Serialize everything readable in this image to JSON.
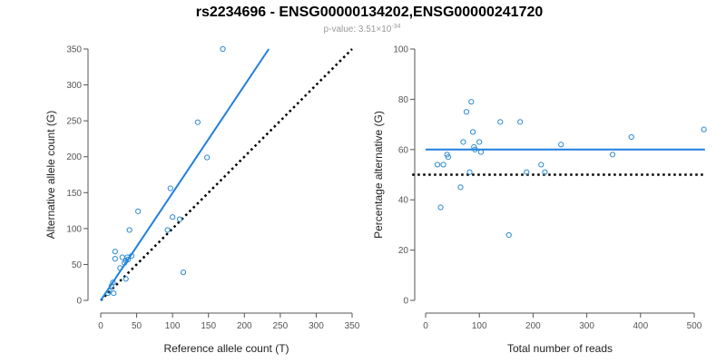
{
  "figure": {
    "title": "rs2234696 - ENSG00000134202,ENSG00000241720",
    "subtitle": {
      "prefix": "p-value: 3.51×10",
      "exponent": "-34"
    }
  },
  "colors": {
    "points": "#2a8ad4",
    "fit_line": "#1f7fe0",
    "reference_line": "#000000",
    "axis": "#555555"
  },
  "chart_data": [
    {
      "type": "scatter",
      "xlabel": "Reference allele count (T)",
      "ylabel": "Alternative allele count (G)",
      "xlim": [
        0,
        350
      ],
      "ylim": [
        0,
        350
      ],
      "xticks": [
        0,
        50,
        100,
        150,
        200,
        250,
        300,
        350
      ],
      "yticks": [
        0,
        50,
        100,
        150,
        200,
        250,
        300,
        350
      ],
      "grid": false,
      "points": [
        {
          "x": 10,
          "y": 10
        },
        {
          "x": 12,
          "y": 13
        },
        {
          "x": 15,
          "y": 20
        },
        {
          "x": 17,
          "y": 25
        },
        {
          "x": 18,
          "y": 10
        },
        {
          "x": 20,
          "y": 58
        },
        {
          "x": 20,
          "y": 68
        },
        {
          "x": 27,
          "y": 45
        },
        {
          "x": 30,
          "y": 60
        },
        {
          "x": 33,
          "y": 52
        },
        {
          "x": 35,
          "y": 55
        },
        {
          "x": 35,
          "y": 30
        },
        {
          "x": 37,
          "y": 60
        },
        {
          "x": 38,
          "y": 57
        },
        {
          "x": 40,
          "y": 98
        },
        {
          "x": 43,
          "y": 62
        },
        {
          "x": 52,
          "y": 124
        },
        {
          "x": 93,
          "y": 98
        },
        {
          "x": 97,
          "y": 156
        },
        {
          "x": 100,
          "y": 116
        },
        {
          "x": 110,
          "y": 113
        },
        {
          "x": 115,
          "y": 39
        },
        {
          "x": 135,
          "y": 248
        },
        {
          "x": 148,
          "y": 199
        },
        {
          "x": 170,
          "y": 350
        }
      ],
      "fit_line": {
        "x": [
          0,
          234
        ],
        "y": [
          0,
          350
        ]
      },
      "reference_line": {
        "x": [
          0,
          350
        ],
        "y": [
          0,
          350
        ]
      }
    },
    {
      "type": "scatter",
      "xlabel": "Total number of reads",
      "ylabel": "Percentage alternative (G)",
      "xlim": [
        0,
        500
      ],
      "ylim": [
        0,
        100
      ],
      "xticks": [
        0,
        100,
        200,
        300,
        400,
        500
      ],
      "yticks": [
        0,
        20,
        40,
        60,
        80,
        100
      ],
      "grid": false,
      "points": [
        {
          "x": 22,
          "y": 54
        },
        {
          "x": 28,
          "y": 37
        },
        {
          "x": 33,
          "y": 54
        },
        {
          "x": 40,
          "y": 58
        },
        {
          "x": 42,
          "y": 57
        },
        {
          "x": 65,
          "y": 45
        },
        {
          "x": 70,
          "y": 63
        },
        {
          "x": 76,
          "y": 75
        },
        {
          "x": 82,
          "y": 51
        },
        {
          "x": 85,
          "y": 79
        },
        {
          "x": 88,
          "y": 67
        },
        {
          "x": 90,
          "y": 61
        },
        {
          "x": 92,
          "y": 60
        },
        {
          "x": 100,
          "y": 63
        },
        {
          "x": 103,
          "y": 59
        },
        {
          "x": 139,
          "y": 71
        },
        {
          "x": 155,
          "y": 26
        },
        {
          "x": 176,
          "y": 71
        },
        {
          "x": 188,
          "y": 51
        },
        {
          "x": 215,
          "y": 54
        },
        {
          "x": 222,
          "y": 51
        },
        {
          "x": 252,
          "y": 62
        },
        {
          "x": 348,
          "y": 58
        },
        {
          "x": 383,
          "y": 65
        },
        {
          "x": 518,
          "y": 68
        }
      ],
      "fit_line": {
        "x": [
          0,
          520
        ],
        "y": [
          60,
          60
        ]
      },
      "reference_line": {
        "x": [
          -25,
          520
        ],
        "y": [
          50,
          50
        ]
      }
    }
  ]
}
